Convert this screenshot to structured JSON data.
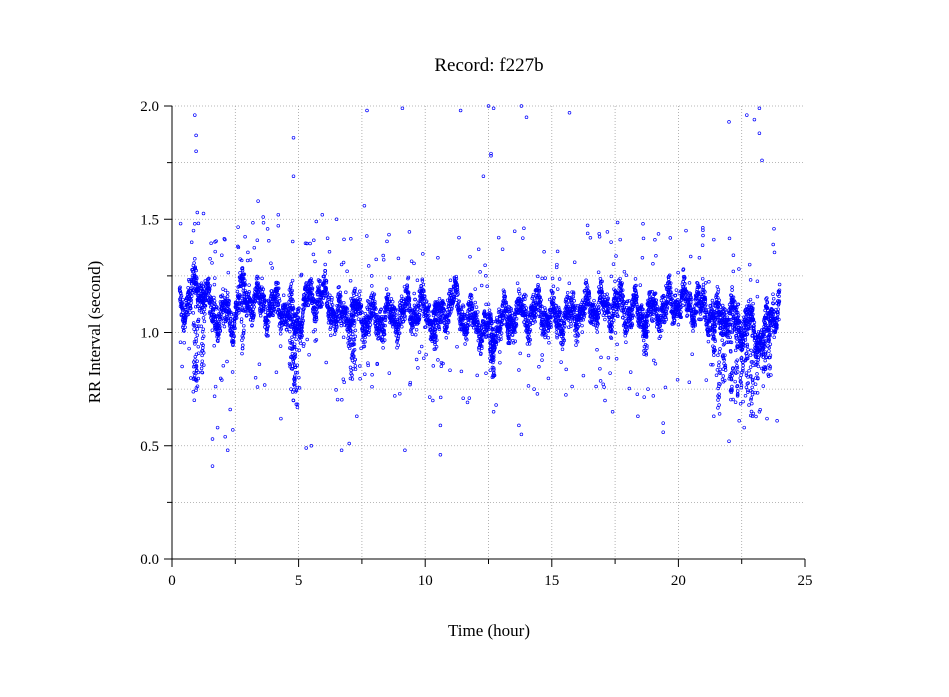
{
  "chart_data": {
    "type": "scatter",
    "title": "Record:  f227b",
    "xlabel": "Time (hour)",
    "ylabel": "RR Interval (second)",
    "xlim": [
      0,
      25
    ],
    "ylim": [
      0,
      2.0
    ],
    "x_ticks": [
      0,
      5,
      10,
      15,
      20,
      25
    ],
    "x_tick_labels": [
      "0",
      "5",
      "10",
      "15",
      "20",
      "25"
    ],
    "y_ticks": [
      0.0,
      0.5,
      1.0,
      1.5,
      2.0
    ],
    "y_tick_labels": [
      "0.0",
      "0.5",
      "1.0",
      "1.5",
      "2.0"
    ],
    "grid": true,
    "marker_color": "#0000ff",
    "marker": "open-circle",
    "series": [
      {
        "dense_band": [
          [
            0.3,
            1.13
          ],
          [
            0.6,
            1.12
          ],
          [
            0.9,
            1.2
          ],
          [
            1.2,
            1.2
          ],
          [
            1.5,
            1.1
          ],
          [
            1.8,
            1.08
          ],
          [
            2.1,
            1.08
          ],
          [
            2.4,
            1.05
          ],
          [
            2.7,
            1.18
          ],
          [
            3.0,
            1.15
          ],
          [
            3.3,
            1.12
          ],
          [
            3.6,
            1.14
          ],
          [
            3.9,
            1.1
          ],
          [
            4.2,
            1.12
          ],
          [
            4.5,
            1.1
          ],
          [
            4.8,
            1.05
          ],
          [
            5.1,
            1.08
          ],
          [
            5.4,
            1.15
          ],
          [
            5.7,
            1.16
          ],
          [
            6.0,
            1.15
          ],
          [
            6.3,
            1.12
          ],
          [
            6.6,
            1.06
          ],
          [
            6.9,
            1.08
          ],
          [
            7.2,
            1.1
          ],
          [
            7.5,
            1.07
          ],
          [
            7.8,
            1.08
          ],
          [
            8.1,
            1.05
          ],
          [
            8.4,
            1.08
          ],
          [
            8.7,
            1.05
          ],
          [
            9.0,
            1.08
          ],
          [
            9.3,
            1.1
          ],
          [
            9.6,
            1.1
          ],
          [
            9.9,
            1.11
          ],
          [
            10.2,
            1.08
          ],
          [
            10.5,
            1.05
          ],
          [
            10.8,
            1.1
          ],
          [
            11.1,
            1.15
          ],
          [
            11.4,
            1.1
          ],
          [
            11.7,
            1.05
          ],
          [
            12.0,
            1.05
          ],
          [
            12.3,
            1.02
          ],
          [
            12.6,
            1.0
          ],
          [
            12.9,
            1.05
          ],
          [
            13.2,
            1.06
          ],
          [
            13.5,
            1.08
          ],
          [
            13.8,
            1.08
          ],
          [
            14.1,
            1.08
          ],
          [
            14.4,
            1.1
          ],
          [
            14.7,
            1.08
          ],
          [
            15.0,
            1.06
          ],
          [
            15.3,
            1.06
          ],
          [
            15.6,
            1.07
          ],
          [
            15.9,
            1.08
          ],
          [
            16.2,
            1.1
          ],
          [
            16.5,
            1.12
          ],
          [
            16.8,
            1.12
          ],
          [
            17.1,
            1.1
          ],
          [
            17.4,
            1.12
          ],
          [
            17.7,
            1.12
          ],
          [
            18.0,
            1.1
          ],
          [
            18.3,
            1.1
          ],
          [
            18.6,
            1.08
          ],
          [
            18.9,
            1.08
          ],
          [
            19.2,
            1.1
          ],
          [
            19.5,
            1.12
          ],
          [
            19.8,
            1.14
          ],
          [
            20.1,
            1.14
          ],
          [
            20.4,
            1.12
          ],
          [
            20.7,
            1.12
          ],
          [
            21.0,
            1.1
          ],
          [
            21.3,
            1.08
          ],
          [
            21.6,
            1.06
          ],
          [
            21.9,
            1.08
          ],
          [
            22.2,
            1.05
          ],
          [
            22.5,
            1.03
          ],
          [
            22.8,
            1.05
          ],
          [
            23.1,
            0.98
          ],
          [
            23.4,
            1.0
          ],
          [
            23.7,
            1.08
          ],
          [
            24.0,
            1.13
          ]
        ],
        "outliers": [
          [
            0.9,
            1.96
          ],
          [
            0.95,
            1.87
          ],
          [
            0.95,
            1.8
          ],
          [
            1.0,
            1.53
          ],
          [
            0.85,
            1.45
          ],
          [
            0.9,
            1.48
          ],
          [
            1.7,
            1.4
          ],
          [
            1.6,
            0.53
          ],
          [
            1.6,
            0.41
          ],
          [
            1.8,
            0.58
          ],
          [
            2.1,
            0.54
          ],
          [
            2.2,
            0.48
          ],
          [
            3.4,
            1.58
          ],
          [
            3.6,
            1.51
          ],
          [
            4.2,
            1.52
          ],
          [
            2.3,
            0.66
          ],
          [
            2.4,
            0.57
          ],
          [
            3.3,
            0.8
          ],
          [
            4.3,
            0.62
          ],
          [
            4.7,
            0.75
          ],
          [
            4.8,
            0.7
          ],
          [
            4.8,
            1.86
          ],
          [
            4.8,
            1.69
          ],
          [
            5.3,
            0.49
          ],
          [
            5.5,
            0.5
          ],
          [
            5.7,
            1.49
          ],
          [
            6.5,
            1.5
          ],
          [
            6.7,
            0.48
          ],
          [
            7.0,
            0.51
          ],
          [
            7.3,
            0.63
          ],
          [
            7.6,
            1.56
          ],
          [
            7.7,
            1.98
          ],
          [
            9.1,
            1.99
          ],
          [
            9.2,
            0.48
          ],
          [
            10.3,
            0.7
          ],
          [
            10.6,
            0.59
          ],
          [
            10.6,
            0.46
          ],
          [
            11.4,
            1.98
          ],
          [
            12.3,
            1.69
          ],
          [
            12.5,
            2.0
          ],
          [
            12.6,
            1.79
          ],
          [
            12.6,
            1.78
          ],
          [
            12.7,
            1.99
          ],
          [
            12.8,
            0.68
          ],
          [
            12.7,
            0.65
          ],
          [
            13.8,
            2.0
          ],
          [
            14.0,
            1.95
          ],
          [
            13.9,
            1.46
          ],
          [
            13.7,
            0.59
          ],
          [
            13.8,
            0.55
          ],
          [
            15.7,
            1.97
          ],
          [
            17.1,
            0.7
          ],
          [
            17.4,
            0.65
          ],
          [
            18.6,
            1.48
          ],
          [
            18.4,
            0.63
          ],
          [
            19.4,
            0.6
          ],
          [
            19.4,
            0.56
          ],
          [
            20.3,
            1.45
          ],
          [
            21.4,
            1.41
          ],
          [
            21.4,
            0.63
          ],
          [
            22.0,
            1.93
          ],
          [
            22.0,
            0.52
          ],
          [
            22.7,
            1.96
          ],
          [
            23.0,
            1.94
          ],
          [
            23.2,
            1.99
          ],
          [
            23.2,
            1.88
          ],
          [
            23.3,
            1.76
          ],
          [
            23.2,
            0.65
          ],
          [
            23.5,
            0.62
          ],
          [
            23.9,
            0.61
          ],
          [
            22.4,
            0.61
          ],
          [
            22.6,
            0.58
          ],
          [
            12.4,
            0.82
          ],
          [
            6.8,
            0.78
          ],
          [
            8.8,
            0.72
          ],
          [
            14.3,
            0.75
          ],
          [
            17.7,
            1.41
          ],
          [
            18.8,
            0.75
          ],
          [
            0.4,
            0.85
          ],
          [
            2.6,
            1.38
          ],
          [
            3.1,
            1.32
          ],
          [
            10.5,
            1.33
          ],
          [
            20.2,
            1.28
          ],
          [
            9.4,
            0.77
          ],
          [
            11.5,
            0.71
          ],
          [
            16.9,
            0.84
          ],
          [
            21.1,
            0.79
          ],
          [
            15.2,
            1.3
          ]
        ],
        "dips": [
          [
            0.9,
            0.68
          ],
          [
            1.0,
            0.75
          ],
          [
            1.2,
            0.82
          ],
          [
            2.8,
            0.9
          ],
          [
            4.7,
            0.8
          ],
          [
            4.9,
            0.65
          ],
          [
            4.8,
            0.7
          ],
          [
            7.1,
            0.78
          ],
          [
            7.2,
            0.8
          ],
          [
            10.4,
            0.92
          ],
          [
            12.6,
            0.87
          ],
          [
            12.7,
            0.8
          ],
          [
            13.3,
            0.95
          ],
          [
            18.7,
            0.9
          ],
          [
            21.8,
            0.78
          ],
          [
            22.1,
            0.7
          ],
          [
            22.3,
            0.66
          ],
          [
            22.7,
            0.72
          ],
          [
            22.9,
            0.63
          ],
          [
            23.1,
            0.7
          ],
          [
            23.4,
            0.82
          ],
          [
            23.6,
            0.8
          ],
          [
            21.4,
            0.85
          ],
          [
            21.6,
            0.62
          ],
          [
            22.5,
            0.65
          ]
        ]
      }
    ]
  }
}
